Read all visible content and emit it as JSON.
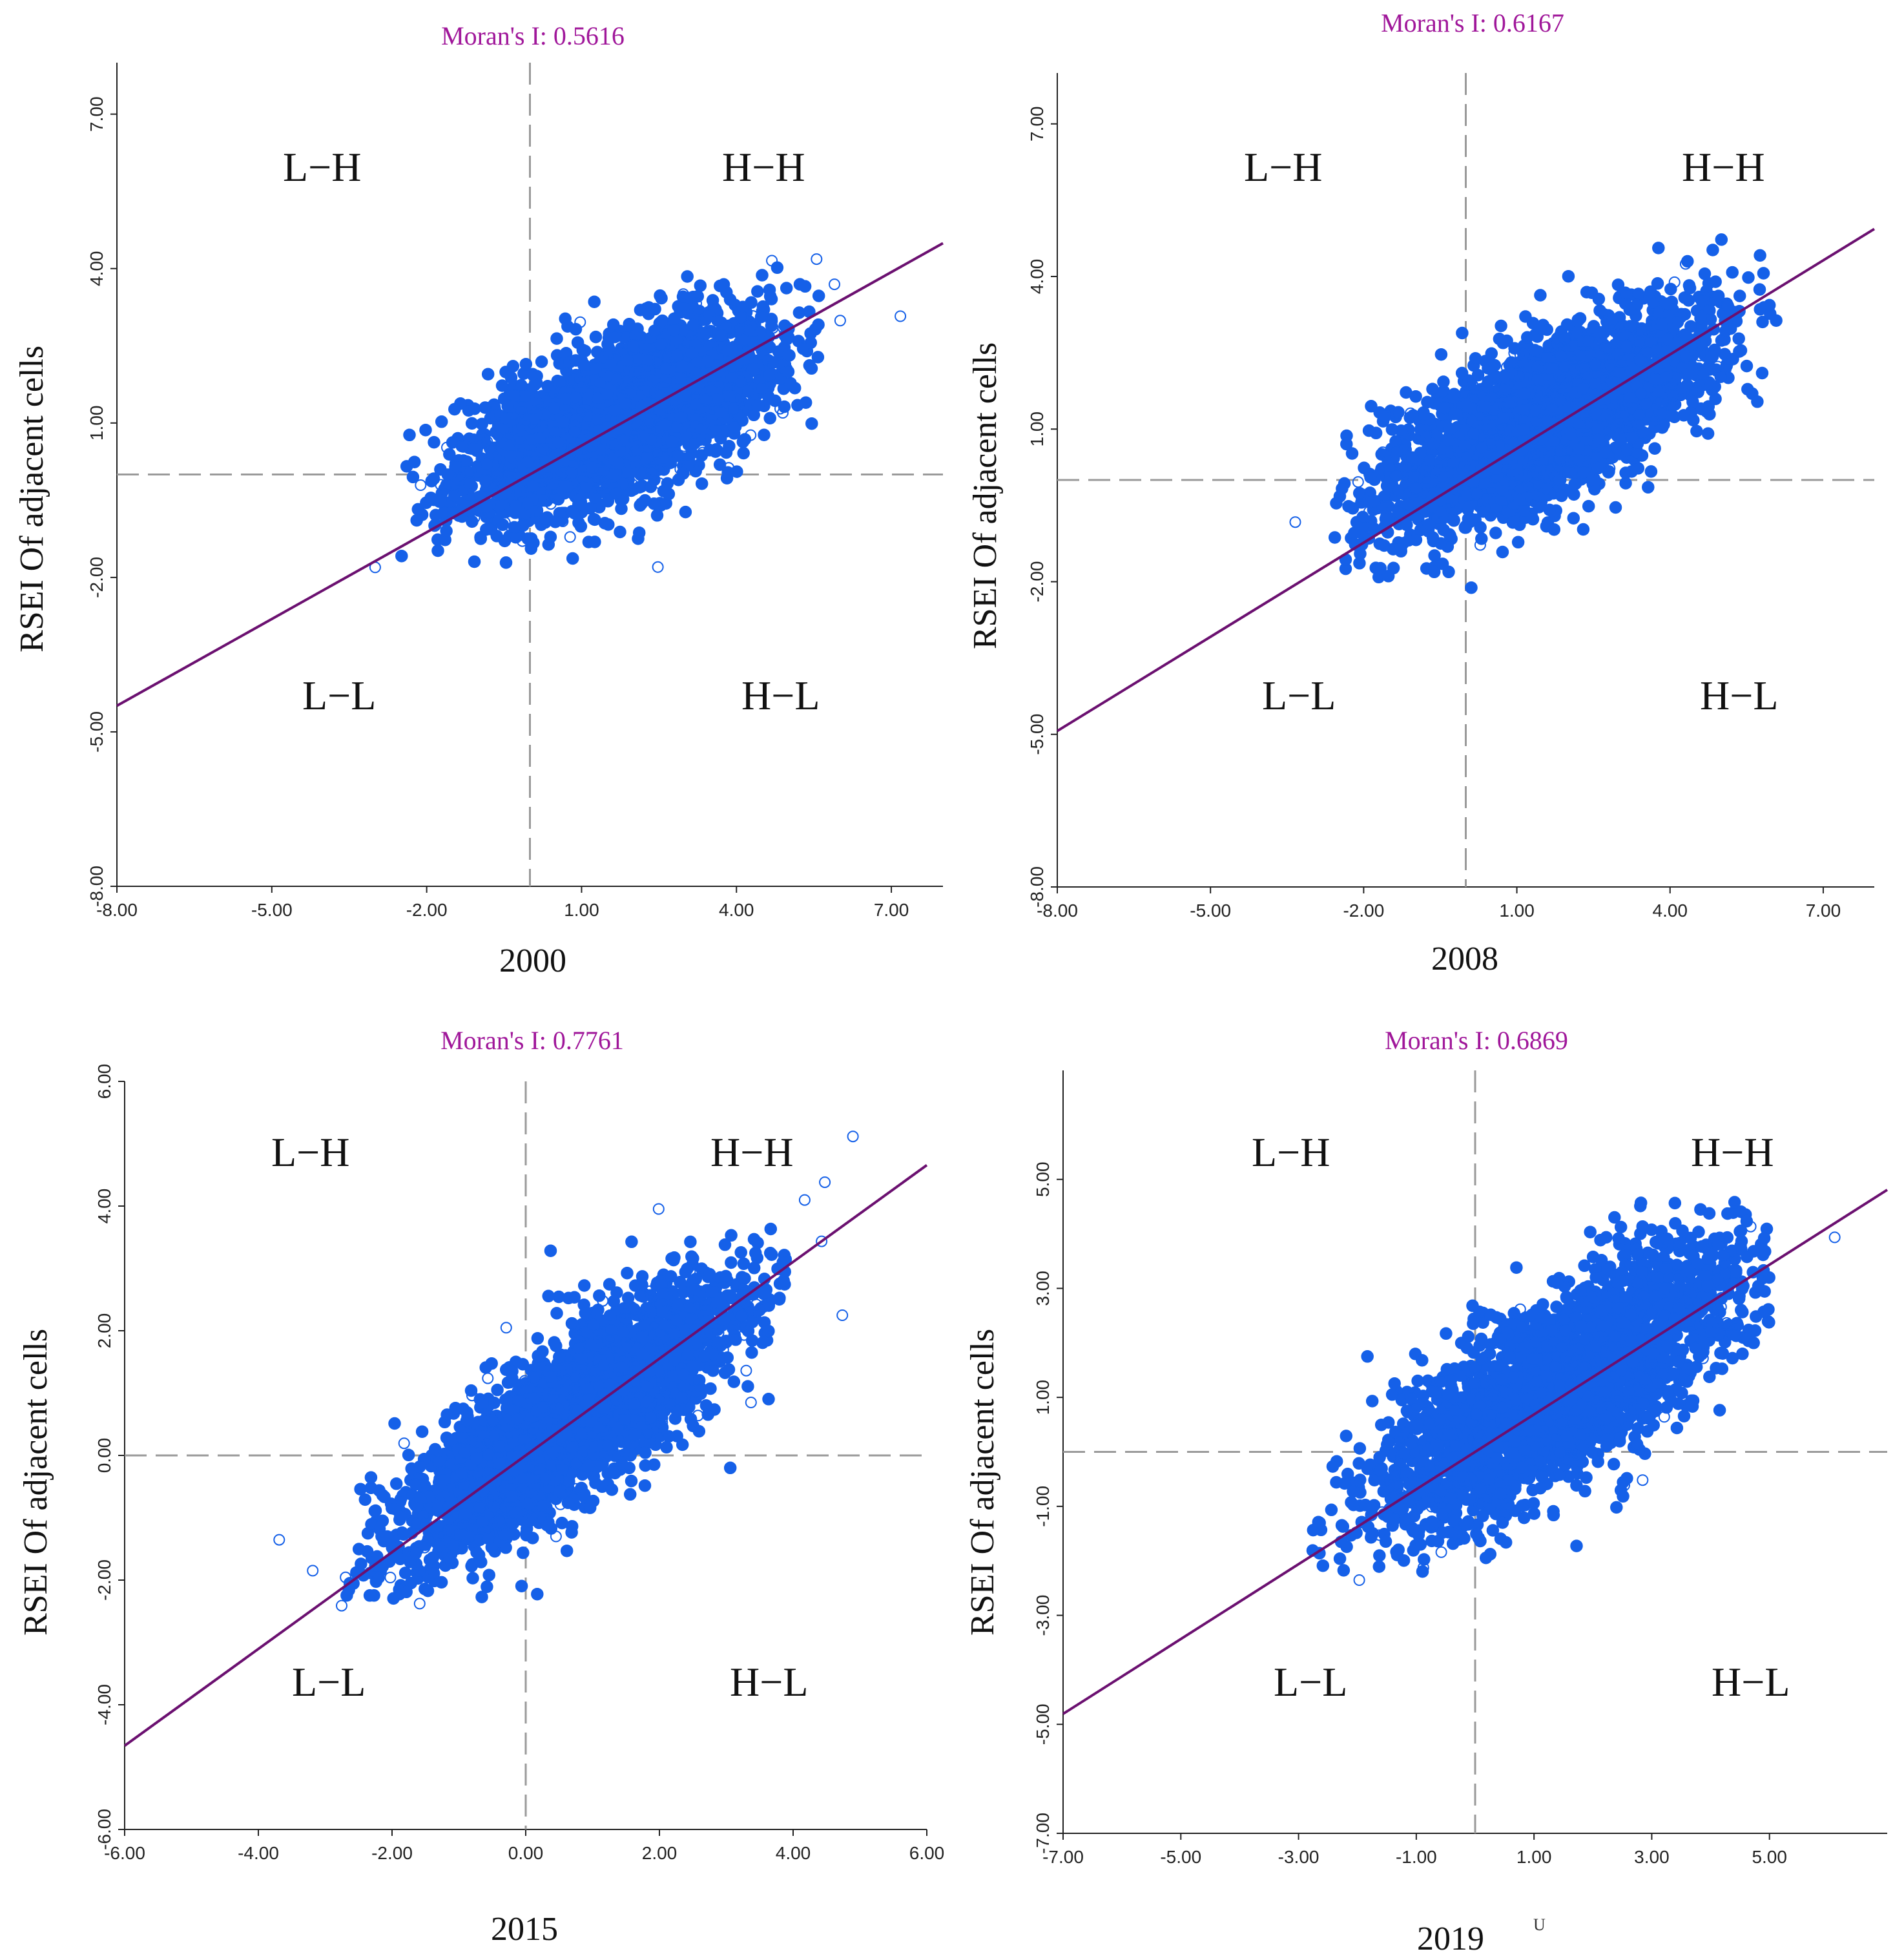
{
  "figure": {
    "stray_mark": "U"
  },
  "chart_data": [
    {
      "type": "scatter",
      "title": "Moran's I: 0.5616",
      "xlabel": "2000",
      "ylabel": "RSEI Of adjacent cells",
      "xlim": [
        -8,
        8
      ],
      "ylim": [
        -8,
        8
      ],
      "xticks": [
        -8,
        -5,
        -2,
        1,
        4,
        7
      ],
      "xtick_labels": [
        "-8.00",
        "-5.00",
        "-2.00",
        "1.00",
        "4.00",
        "7.00"
      ],
      "yticks": [
        -8,
        -5,
        -2,
        1,
        4,
        7
      ],
      "ytick_labels": [
        "-8.00",
        "-5.00",
        "-2.00",
        "1.00",
        "4.00",
        "7.00"
      ],
      "quadrants": [
        "L−H",
        "H−H",
        "L−L",
        "H−L"
      ],
      "slope": 0.5616,
      "cloud": {
        "cx": 1.7,
        "cy": 1.1,
        "sx": 1.5,
        "sy": 0.95,
        "rho": 0.62,
        "xmin": -2.6,
        "xmax": 5.7,
        "ymin": -1.9,
        "ymax": 4.6
      },
      "colors": {
        "points": "#1560e8",
        "line": "#6b1070",
        "ref": "#9a9a9a",
        "title": "#a0179a"
      }
    },
    {
      "type": "scatter",
      "title": "Moran's I: 0.6167",
      "xlabel": "2008",
      "ylabel": "RSEI Of adjacent cells",
      "xlim": [
        -8,
        8
      ],
      "ylim": [
        -8,
        8
      ],
      "xticks": [
        -8,
        -5,
        -2,
        1,
        4,
        7
      ],
      "xtick_labels": [
        "-8.00",
        "-5.00",
        "-2.00",
        "1.00",
        "4.00",
        "7.00"
      ],
      "yticks": [
        -8,
        -5,
        -2,
        1,
        4,
        7
      ],
      "ytick_labels": [
        "-8.00",
        "-5.00",
        "-2.00",
        "1.00",
        "4.00",
        "7.00"
      ],
      "quadrants": [
        "L−H",
        "H−H",
        "L−L",
        "H−L"
      ],
      "slope": 0.6167,
      "cloud": {
        "cx": 1.6,
        "cy": 1.2,
        "sx": 1.6,
        "sy": 1.05,
        "rho": 0.68,
        "xmin": -2.6,
        "xmax": 6.1,
        "ymin": -2.2,
        "ymax": 4.8
      },
      "colors": {
        "points": "#1560e8",
        "line": "#6b1070",
        "ref": "#9a9a9a",
        "title": "#a0179a"
      }
    },
    {
      "type": "scatter",
      "title": "Moran's I: 0.7761",
      "xlabel": "2015",
      "ylabel": "RSEI Of adjacent cells",
      "xlim": [
        -6,
        6
      ],
      "ylim": [
        -6,
        6
      ],
      "xticks": [
        -6,
        -4,
        -2,
        0,
        2,
        4,
        6
      ],
      "xtick_labels": [
        "-6.00",
        "-4.00",
        "-2.00",
        "0.00",
        "2.00",
        "4.00",
        "6.00"
      ],
      "yticks": [
        -6,
        -4,
        -2,
        0,
        2,
        4,
        6
      ],
      "ytick_labels": [
        "-6.00",
        "-4.00",
        "-2.00",
        "0.00",
        "2.00",
        "4.00",
        "6.00"
      ],
      "quadrants": [
        "L−H",
        "H−H",
        "L−L",
        "H−L"
      ],
      "slope": 0.7761,
      "cloud": {
        "cx": 0.7,
        "cy": 0.6,
        "sx": 1.35,
        "sy": 1.15,
        "rho": 0.82,
        "xmin": -2.7,
        "xmax": 3.9,
        "ymin": -2.3,
        "ymax": 3.7
      },
      "colors": {
        "points": "#1560e8",
        "line": "#6b1070",
        "ref": "#9a9a9a",
        "title": "#a0179a"
      }
    },
    {
      "type": "scatter",
      "title": "Moran's I: 0.6869",
      "xlabel": "2019",
      "ylabel": "RSEI Of adjacent cells",
      "xlim": [
        -7,
        7
      ],
      "ylim": [
        -7,
        7
      ],
      "xticks": [
        -7,
        -5,
        -3,
        -1,
        1,
        3,
        5
      ],
      "xtick_labels": [
        "-7.00",
        "-5.00",
        "-3.00",
        "-1.00",
        "1.00",
        "3.00",
        "5.00"
      ],
      "yticks": [
        -7,
        -5,
        -3,
        -1,
        1,
        3,
        5
      ],
      "ytick_labels": [
        "-7.00",
        "-5.00",
        "-3.00",
        "-1.00",
        "1.00",
        "3.00",
        "5.00"
      ],
      "quadrants": [
        "L−H",
        "H−H",
        "L−L",
        "H−L"
      ],
      "slope": 0.6869,
      "cloud": {
        "cx": 1.4,
        "cy": 1.2,
        "sx": 1.55,
        "sy": 1.3,
        "rho": 0.75,
        "xmin": -2.8,
        "xmax": 5.0,
        "ymin": -2.2,
        "ymax": 4.6
      },
      "colors": {
        "points": "#1560e8",
        "line": "#6b1070",
        "ref": "#9a9a9a",
        "title": "#a0179a"
      }
    }
  ]
}
